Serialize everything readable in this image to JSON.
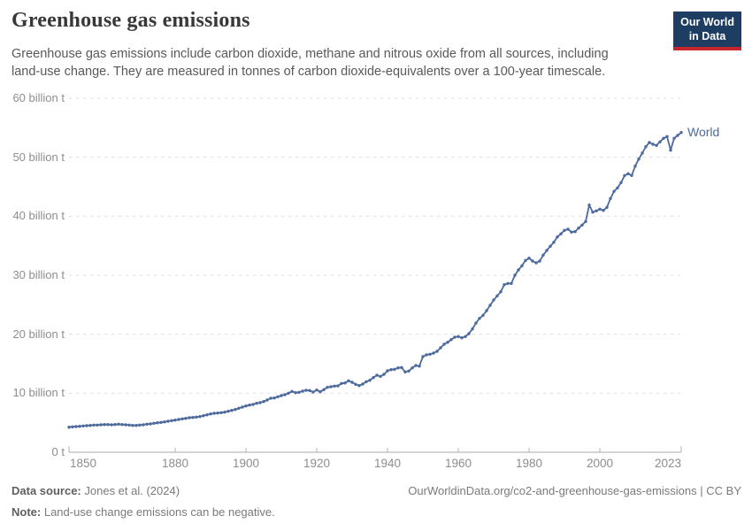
{
  "header": {
    "title": "Greenhouse gas emissions",
    "subtitle": "Greenhouse gas emissions include carbon dioxide, methane and nitrous oxide from all sources, including land-use change. They are measured in tonnes of carbon dioxide-equivalents over a 100-year timescale.",
    "logo": {
      "line1": "Our World",
      "line2": "in Data",
      "bg_color": "#1d3d63",
      "accent_color": "#c7252c"
    }
  },
  "chart_data": {
    "type": "line",
    "title": "Greenhouse gas emissions",
    "xlabel": "",
    "ylabel": "",
    "xlim": [
      1850,
      2023
    ],
    "ylim": [
      0,
      60
    ],
    "grid": "horizontal-dashed",
    "legend_position": "end-of-line",
    "x_ticks": [
      1850,
      1880,
      1900,
      1920,
      1940,
      1960,
      1980,
      2000,
      2023
    ],
    "y_ticks": [
      {
        "value": 0,
        "label": "0 t"
      },
      {
        "value": 10,
        "label": "10 billion t"
      },
      {
        "value": 20,
        "label": "20 billion t"
      },
      {
        "value": 30,
        "label": "30 billion t"
      },
      {
        "value": 40,
        "label": "40 billion t"
      },
      {
        "value": 50,
        "label": "50 billion t"
      },
      {
        "value": 60,
        "label": "60 billion t"
      }
    ],
    "unit": "billion tonnes of CO2-equivalents",
    "series": [
      {
        "name": "World",
        "color": "#4C6A9C",
        "years": [
          1850,
          1851,
          1852,
          1853,
          1854,
          1855,
          1856,
          1857,
          1858,
          1859,
          1860,
          1861,
          1862,
          1863,
          1864,
          1865,
          1866,
          1867,
          1868,
          1869,
          1870,
          1871,
          1872,
          1873,
          1874,
          1875,
          1876,
          1877,
          1878,
          1879,
          1880,
          1881,
          1882,
          1883,
          1884,
          1885,
          1886,
          1887,
          1888,
          1889,
          1890,
          1891,
          1892,
          1893,
          1894,
          1895,
          1896,
          1897,
          1898,
          1899,
          1900,
          1901,
          1902,
          1903,
          1904,
          1905,
          1906,
          1907,
          1908,
          1909,
          1910,
          1911,
          1912,
          1913,
          1914,
          1915,
          1916,
          1917,
          1918,
          1919,
          1920,
          1921,
          1922,
          1923,
          1924,
          1925,
          1926,
          1927,
          1928,
          1929,
          1930,
          1931,
          1932,
          1933,
          1934,
          1935,
          1936,
          1937,
          1938,
          1939,
          1940,
          1941,
          1942,
          1943,
          1944,
          1945,
          1946,
          1947,
          1948,
          1949,
          1950,
          1951,
          1952,
          1953,
          1954,
          1955,
          1956,
          1957,
          1958,
          1959,
          1960,
          1961,
          1962,
          1963,
          1964,
          1965,
          1966,
          1967,
          1968,
          1969,
          1970,
          1971,
          1972,
          1973,
          1974,
          1975,
          1976,
          1977,
          1978,
          1979,
          1980,
          1981,
          1982,
          1983,
          1984,
          1985,
          1986,
          1987,
          1988,
          1989,
          1990,
          1991,
          1992,
          1993,
          1994,
          1995,
          1996,
          1997,
          1998,
          1999,
          2000,
          2001,
          2002,
          2003,
          2004,
          2005,
          2006,
          2007,
          2008,
          2009,
          2010,
          2011,
          2012,
          2013,
          2014,
          2015,
          2016,
          2017,
          2018,
          2019,
          2020,
          2021,
          2022,
          2023
        ],
        "values": [
          4.25,
          4.3,
          4.35,
          4.4,
          4.45,
          4.5,
          4.55,
          4.6,
          4.6,
          4.65,
          4.7,
          4.7,
          4.65,
          4.7,
          4.75,
          4.7,
          4.65,
          4.6,
          4.55,
          4.55,
          4.6,
          4.65,
          4.75,
          4.8,
          4.9,
          5.0,
          5.05,
          5.15,
          5.25,
          5.35,
          5.45,
          5.55,
          5.65,
          5.75,
          5.85,
          5.9,
          5.95,
          6.05,
          6.2,
          6.35,
          6.5,
          6.6,
          6.65,
          6.7,
          6.8,
          6.95,
          7.1,
          7.25,
          7.45,
          7.65,
          7.85,
          8.0,
          8.1,
          8.3,
          8.4,
          8.6,
          8.85,
          9.15,
          9.2,
          9.4,
          9.6,
          9.75,
          10.0,
          10.3,
          10.1,
          10.15,
          10.35,
          10.5,
          10.45,
          10.2,
          10.55,
          10.25,
          10.6,
          11.0,
          11.1,
          11.2,
          11.25,
          11.65,
          11.75,
          12.1,
          11.85,
          11.5,
          11.3,
          11.55,
          11.95,
          12.2,
          12.65,
          13.05,
          12.85,
          13.2,
          13.8,
          14.0,
          14.05,
          14.3,
          14.35,
          13.6,
          13.75,
          14.3,
          14.7,
          14.6,
          16.2,
          16.5,
          16.6,
          16.8,
          17.1,
          17.7,
          18.3,
          18.65,
          19.1,
          19.5,
          19.6,
          19.4,
          19.6,
          20.1,
          20.9,
          21.9,
          22.7,
          23.2,
          24.0,
          24.9,
          25.8,
          26.5,
          27.2,
          28.4,
          28.6,
          28.6,
          30.0,
          30.9,
          31.6,
          32.5,
          32.9,
          32.4,
          32.1,
          32.4,
          33.4,
          34.2,
          34.9,
          35.6,
          36.5,
          37.0,
          37.6,
          37.8,
          37.3,
          37.4,
          38.0,
          38.5,
          39.1,
          41.9,
          40.7,
          40.9,
          41.2,
          41.0,
          41.5,
          43.0,
          44.2,
          44.8,
          45.7,
          46.9,
          47.2,
          46.9,
          48.5,
          49.7,
          50.7,
          51.8,
          52.5,
          52.2,
          52.0,
          52.6,
          53.2,
          53.5,
          51.2,
          53.2,
          53.7,
          54.2
        ]
      }
    ]
  },
  "footer": {
    "datasource_label": "Data source:",
    "datasource_value": "Jones et al. (2024)",
    "note_label": "Note:",
    "note_value": "Land-use change emissions can be negative.",
    "url": "OurWorldinData.org/co2-and-greenhouse-gas-emissions",
    "separator": " | ",
    "license": "CC BY"
  }
}
